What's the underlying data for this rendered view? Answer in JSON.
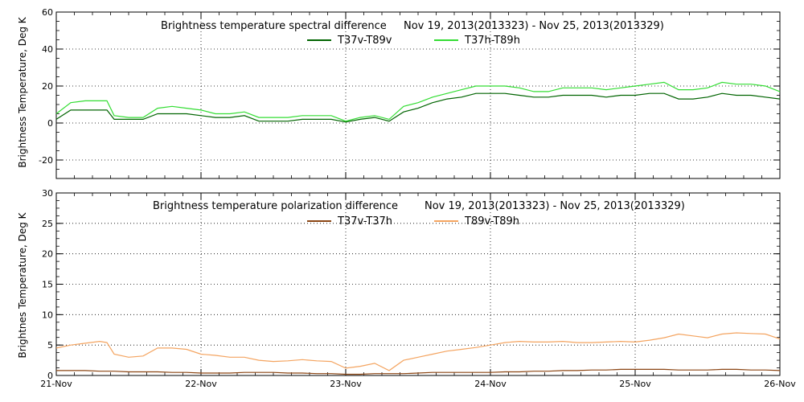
{
  "chart_data": [
    {
      "type": "line",
      "title": "Brightness temperature spectral difference",
      "subtitle": "Nov 19, 2013(2013323) - Nov 25, 2013(2013329)",
      "ylabel": "Brightness Temperature, Deg K",
      "xlabel": "",
      "x_tick_labels": [
        "21-Nov",
        "22-Nov",
        "23-Nov",
        "24-Nov",
        "25-Nov",
        "26-Nov"
      ],
      "xlim": [
        0,
        5
      ],
      "ylim": [
        -30,
        60
      ],
      "y_ticks": [
        -20,
        0,
        20,
        40,
        60
      ],
      "grid": true,
      "x": [
        0.0,
        0.1,
        0.2,
        0.3,
        0.35,
        0.4,
        0.5,
        0.6,
        0.7,
        0.8,
        0.9,
        1.0,
        1.1,
        1.2,
        1.3,
        1.4,
        1.5,
        1.6,
        1.7,
        1.8,
        1.9,
        2.0,
        2.1,
        2.2,
        2.3,
        2.4,
        2.5,
        2.6,
        2.7,
        2.8,
        2.9,
        3.0,
        3.1,
        3.2,
        3.3,
        3.4,
        3.5,
        3.6,
        3.7,
        3.8,
        3.9,
        4.0,
        4.1,
        4.2,
        4.3,
        4.4,
        4.5,
        4.6,
        4.7,
        4.8,
        4.9,
        5.0
      ],
      "series": [
        {
          "name": "T37v-T89v",
          "color": "#006400",
          "values": [
            2,
            7,
            7,
            7,
            7,
            2,
            2,
            2,
            5,
            5,
            5,
            4,
            3,
            3,
            4,
            1,
            1,
            1,
            2,
            2,
            2,
            0.5,
            2,
            3,
            1,
            6,
            8,
            11,
            13,
            14,
            16,
            16,
            16,
            15,
            14,
            14,
            15,
            15,
            15,
            14,
            15,
            15,
            16,
            16,
            13,
            13,
            14,
            16,
            15,
            15,
            14,
            13
          ]
        },
        {
          "name": "T37h-T89h",
          "color": "#33dd33",
          "values": [
            5,
            11,
            12,
            12,
            12,
            4,
            3,
            3,
            8,
            9,
            8,
            7,
            5,
            5,
            6,
            3,
            3,
            3,
            4,
            4,
            4,
            1,
            3,
            4,
            2,
            9,
            11,
            14,
            16,
            18,
            20,
            20,
            20,
            19,
            17,
            17,
            19,
            19,
            19,
            18,
            19,
            20,
            21,
            22,
            18,
            18,
            19,
            22,
            21,
            21,
            20,
            17
          ]
        }
      ]
    },
    {
      "type": "line",
      "title": "Brightness temperature polarization difference",
      "subtitle": "Nov 19, 2013(2013323) - Nov 25, 2013(2013329)",
      "ylabel": "Brightnes Temperature, Deg K",
      "xlabel": "",
      "x_tick_labels": [
        "21-Nov",
        "22-Nov",
        "23-Nov",
        "24-Nov",
        "25-Nov",
        "26-Nov"
      ],
      "xlim": [
        0,
        5
      ],
      "ylim": [
        0,
        30
      ],
      "y_ticks": [
        0,
        5,
        10,
        15,
        20,
        25,
        30
      ],
      "grid": true,
      "x": [
        0.0,
        0.1,
        0.2,
        0.3,
        0.35,
        0.4,
        0.5,
        0.6,
        0.7,
        0.8,
        0.9,
        1.0,
        1.1,
        1.2,
        1.3,
        1.4,
        1.5,
        1.6,
        1.7,
        1.8,
        1.9,
        2.0,
        2.1,
        2.2,
        2.3,
        2.4,
        2.5,
        2.6,
        2.7,
        2.8,
        2.9,
        3.0,
        3.1,
        3.2,
        3.3,
        3.4,
        3.5,
        3.6,
        3.7,
        3.8,
        3.9,
        4.0,
        4.1,
        4.2,
        4.3,
        4.4,
        4.5,
        4.6,
        4.7,
        4.8,
        4.9,
        5.0
      ],
      "series": [
        {
          "name": "T37v-T37h",
          "color": "#8b4513",
          "values": [
            0.8,
            0.8,
            0.8,
            0.7,
            0.7,
            0.7,
            0.6,
            0.6,
            0.6,
            0.5,
            0.5,
            0.4,
            0.4,
            0.4,
            0.5,
            0.5,
            0.5,
            0.4,
            0.4,
            0.3,
            0.3,
            0.2,
            0.2,
            0.3,
            0.3,
            0.3,
            0.4,
            0.5,
            0.5,
            0.5,
            0.5,
            0.5,
            0.6,
            0.6,
            0.7,
            0.7,
            0.8,
            0.8,
            0.9,
            0.9,
            1.0,
            1.0,
            1.0,
            1.0,
            0.9,
            0.9,
            0.9,
            1.0,
            1.0,
            0.9,
            0.9,
            0.8
          ]
        },
        {
          "name": "T89v-T89h",
          "color": "#f4a460",
          "values": [
            4.5,
            5.0,
            5.3,
            5.6,
            5.4,
            3.5,
            3.0,
            3.2,
            4.5,
            4.5,
            4.3,
            3.5,
            3.3,
            3.0,
            3.0,
            2.5,
            2.3,
            2.4,
            2.6,
            2.4,
            2.3,
            1.2,
            1.5,
            2.0,
            0.8,
            2.5,
            3.0,
            3.5,
            4.0,
            4.3,
            4.6,
            5.0,
            5.4,
            5.6,
            5.5,
            5.5,
            5.6,
            5.4,
            5.4,
            5.5,
            5.6,
            5.5,
            5.8,
            6.2,
            6.8,
            6.5,
            6.2,
            6.8,
            7.0,
            6.9,
            6.8,
            6.0
          ]
        }
      ]
    }
  ]
}
